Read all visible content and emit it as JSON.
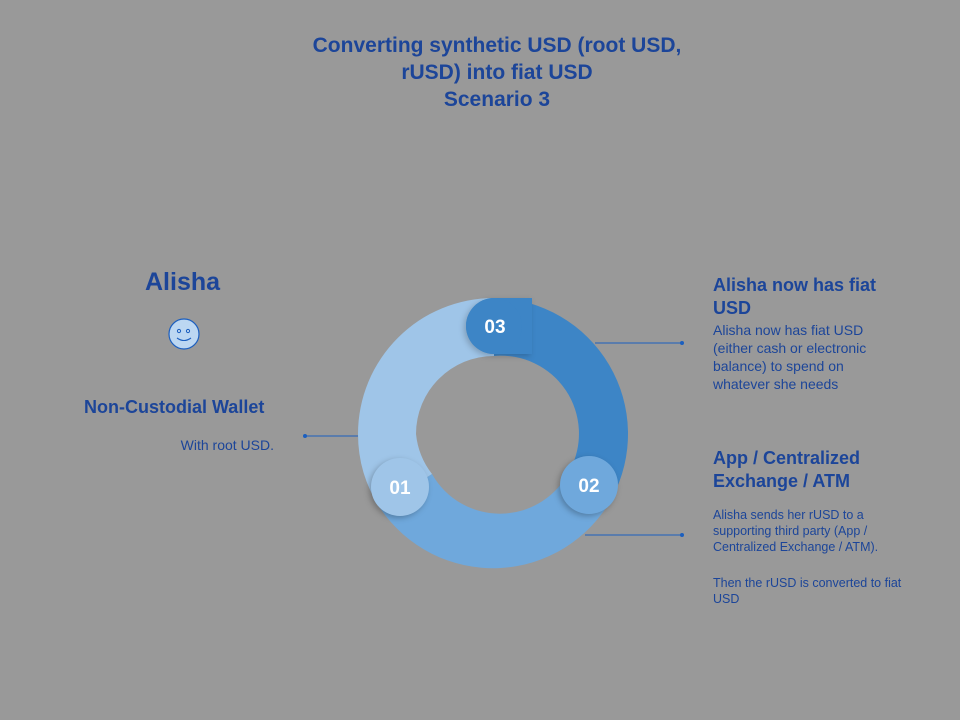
{
  "title": {
    "line1": "Converting synthetic USD (root USD,",
    "line2": "rUSD) into fiat USD",
    "line3": "Scenario 3"
  },
  "person": {
    "name": "Alisha",
    "icon": "smiley-face-icon"
  },
  "steps": [
    {
      "number": "01",
      "title": "Non-Custodial Wallet",
      "description": "With root USD.",
      "color": "#9fc5e8"
    },
    {
      "number": "02",
      "title": "App / Centralized Exchange / ATM",
      "description": "Alisha sends her rUSD to a supporting third party (App / Centralized Exchange / ATM).",
      "note": "Then the rUSD is converted to fiat USD",
      "color": "#6fa8dc"
    },
    {
      "number": "03",
      "title": "Alisha now has fiat USD",
      "description": "Alisha now has fiat USD (either cash or electronic balance) to spend on whatever she needs",
      "color": "#3d85c6"
    }
  ],
  "colors": {
    "background": "#999999",
    "text": "#1c4599",
    "connector": "#1c5fbf"
  }
}
